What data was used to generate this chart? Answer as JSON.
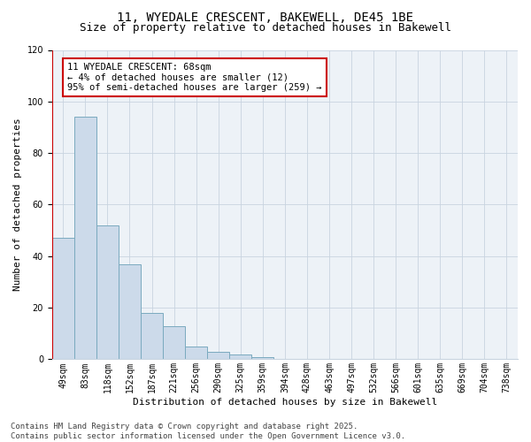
{
  "title_line1": "11, WYEDALE CRESCENT, BAKEWELL, DE45 1BE",
  "title_line2": "Size of property relative to detached houses in Bakewell",
  "xlabel": "Distribution of detached houses by size in Bakewell",
  "ylabel": "Number of detached properties",
  "bar_labels": [
    "49sqm",
    "83sqm",
    "118sqm",
    "152sqm",
    "187sqm",
    "221sqm",
    "256sqm",
    "290sqm",
    "325sqm",
    "359sqm",
    "394sqm",
    "428sqm",
    "463sqm",
    "497sqm",
    "532sqm",
    "566sqm",
    "601sqm",
    "635sqm",
    "669sqm",
    "704sqm",
    "738sqm"
  ],
  "bar_values": [
    47,
    94,
    52,
    37,
    18,
    13,
    5,
    3,
    2,
    1,
    0,
    0,
    0,
    0,
    0,
    0,
    0,
    0,
    0,
    0,
    0
  ],
  "bar_color": "#ccdaea",
  "bar_edge_color": "#7aaabf",
  "bar_edge_width": 0.7,
  "ylim": [
    0,
    120
  ],
  "yticks": [
    0,
    20,
    40,
    60,
    80,
    100,
    120
  ],
  "grid_color": "#c8d4e0",
  "background_color": "#edf2f7",
  "annotation_text": "11 WYEDALE CRESCENT: 68sqm\n← 4% of detached houses are smaller (12)\n95% of semi-detached houses are larger (259) →",
  "annotation_box_color": "#ffffff",
  "annotation_box_edge": "#cc0000",
  "red_line_color": "#cc0000",
  "footer_text": "Contains HM Land Registry data © Crown copyright and database right 2025.\nContains public sector information licensed under the Open Government Licence v3.0.",
  "title_fontsize": 10,
  "subtitle_fontsize": 9,
  "axis_label_fontsize": 8,
  "tick_fontsize": 7,
  "annotation_fontsize": 7.5,
  "footer_fontsize": 6.5
}
